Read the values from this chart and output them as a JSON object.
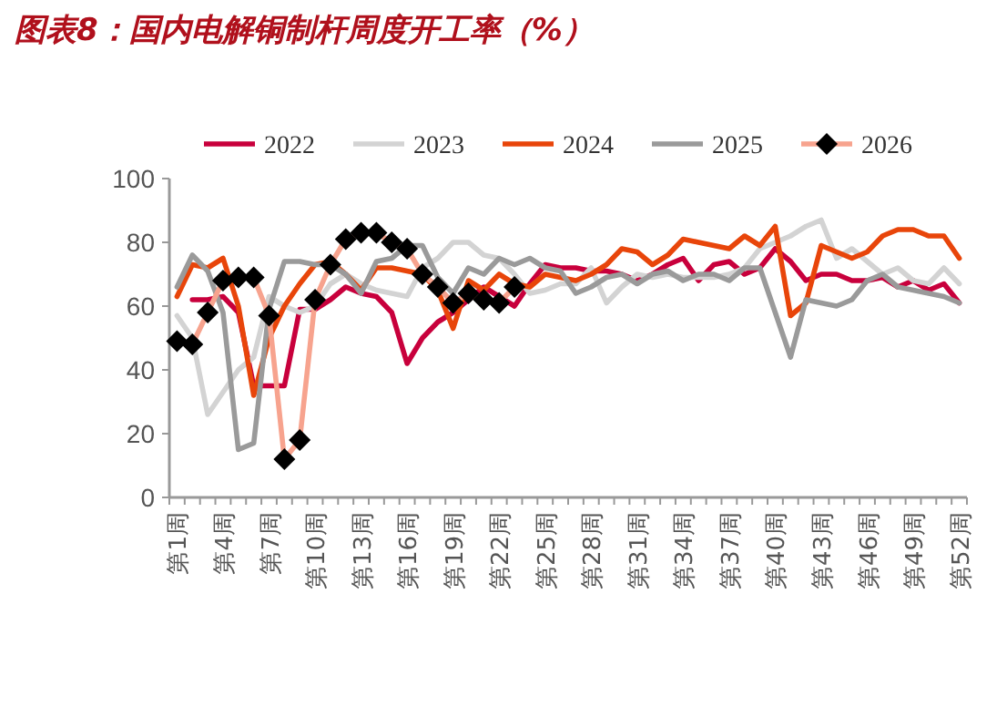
{
  "chart_data": {
    "type": "line",
    "title": "图表8：国内电解铜制杆周度开工率（%）",
    "categories": [
      "第1周",
      null,
      null,
      "第4周",
      null,
      null,
      "第7周",
      null,
      null,
      "第10周",
      null,
      null,
      "第13周",
      null,
      null,
      "第16周",
      null,
      null,
      "第19周",
      null,
      null,
      "第22周",
      null,
      null,
      "第25周",
      null,
      null,
      "第28周",
      null,
      null,
      "第31周",
      null,
      null,
      "第34周",
      null,
      null,
      "第37周",
      null,
      null,
      "第40周",
      null,
      null,
      "第43周",
      null,
      null,
      "第46周",
      null,
      null,
      "第49周",
      null,
      null,
      "第52周"
    ],
    "series": [
      {
        "name": "2022",
        "color": "#c8003c",
        "values": [
          null,
          62,
          62,
          63,
          58,
          35,
          35,
          35,
          59,
          59,
          62,
          66,
          64,
          63,
          58,
          42,
          50,
          55,
          58,
          62,
          66,
          63,
          60,
          67,
          73,
          72,
          72,
          71,
          71,
          70,
          68,
          70,
          73,
          75,
          68,
          73,
          74,
          70,
          72,
          78,
          74,
          68,
          70,
          70,
          68,
          68,
          69,
          66,
          68,
          65,
          67,
          61
        ]
      },
      {
        "name": "2023",
        "color": "#d3d3d3",
        "values": [
          57,
          50,
          26,
          33,
          40,
          44,
          63,
          60,
          58,
          60,
          67,
          70,
          67,
          65,
          64,
          63,
          72,
          75,
          80,
          80,
          76,
          75,
          70,
          64,
          65,
          67,
          67,
          72,
          61,
          66,
          70,
          69,
          70,
          69,
          69,
          69,
          70,
          72,
          78,
          80,
          82,
          85,
          87,
          75,
          78,
          74,
          70,
          72,
          68,
          67,
          72,
          67
        ]
      },
      {
        "name": "2024",
        "color": "#e8450a",
        "values": [
          63,
          73,
          72,
          75,
          60,
          32,
          50,
          60,
          67,
          73,
          74,
          70,
          65,
          72,
          72,
          71,
          70,
          65,
          53,
          68,
          65,
          70,
          67,
          66,
          70,
          69,
          68,
          70,
          73,
          78,
          77,
          73,
          76,
          81,
          80,
          79,
          78,
          82,
          79,
          85,
          57,
          61,
          79,
          77,
          75,
          77,
          82,
          84,
          84,
          82,
          82,
          75
        ]
      },
      {
        "name": "2025",
        "color": "#9a9a9a",
        "values": [
          66,
          76,
          71,
          58,
          15,
          17,
          59,
          74,
          74,
          73,
          73,
          70,
          64,
          74,
          75,
          79,
          79,
          69,
          64,
          72,
          70,
          75,
          73,
          75,
          72,
          71,
          64,
          66,
          69,
          70,
          67,
          70,
          71,
          68,
          70,
          70,
          68,
          72,
          72,
          58,
          44,
          62,
          61,
          60,
          62,
          68,
          70,
          66,
          65,
          64,
          63,
          61
        ]
      },
      {
        "name": "2026",
        "color": "#f7a38e",
        "marker": "diamond",
        "values": [
          49,
          48,
          58,
          68,
          69,
          69,
          57,
          12,
          18,
          62,
          73,
          81,
          83,
          83,
          80,
          78,
          70,
          66,
          61,
          64,
          62,
          61,
          66,
          null,
          null,
          null,
          null,
          null,
          null,
          null,
          null,
          null,
          null,
          null,
          null,
          null,
          null,
          null,
          null,
          null,
          null,
          null,
          null,
          null,
          null,
          null,
          null,
          null,
          null,
          null,
          null,
          null
        ]
      }
    ],
    "ylim": [
      0,
      100
    ],
    "yticks": [
      0,
      20,
      40,
      60,
      80,
      100
    ],
    "grid": false,
    "legend": "top"
  }
}
